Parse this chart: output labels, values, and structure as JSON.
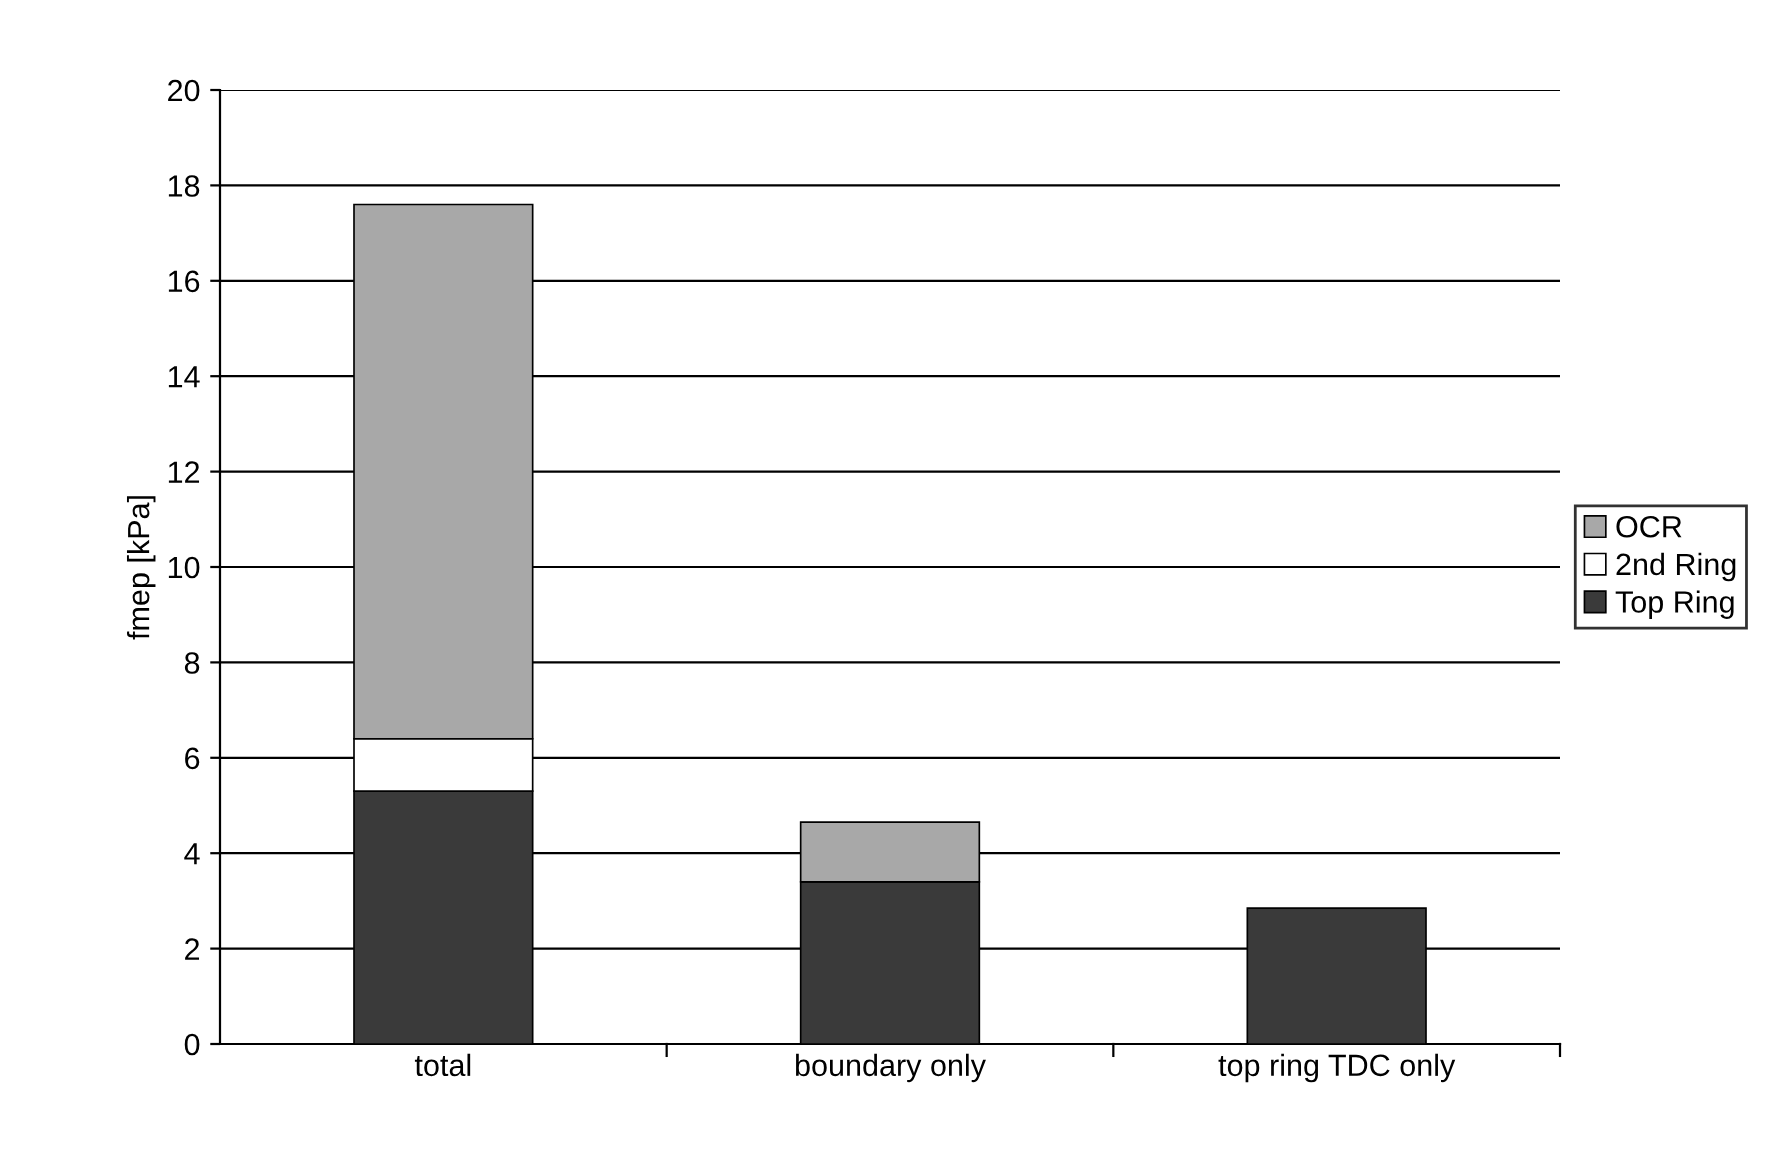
{
  "chart_data": {
    "type": "bar",
    "stacked": true,
    "ylabel": "fmep [kPa]",
    "categories": [
      "total",
      "boundary only",
      "top ring TDC only"
    ],
    "series": [
      {
        "name": "Top Ring",
        "color": "#3a3a3a",
        "values": [
          5.3,
          3.4,
          2.85
        ]
      },
      {
        "name": "2nd Ring",
        "color": "#ffffff",
        "values": [
          1.1,
          null,
          null
        ]
      },
      {
        "name": "OCR",
        "color": "#a8a8a8",
        "values": [
          11.2,
          1.25,
          null
        ]
      }
    ],
    "ylim": [
      0,
      20
    ],
    "yticks": [
      0,
      2,
      4,
      6,
      8,
      10,
      12,
      14,
      16,
      18,
      20
    ],
    "grid": "y",
    "legend": "right"
  }
}
